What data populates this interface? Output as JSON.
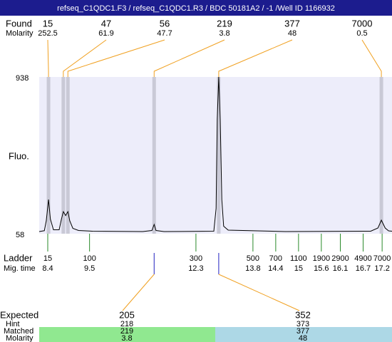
{
  "header": {
    "title": "refseq_C1QDC1.F3 / refseq_C1QDC1.R3 / BDC 50181A2 / -1 /Well ID 1166932"
  },
  "found": {
    "label": "Found",
    "molarity_label": "Molarity",
    "peaks": [
      {
        "size": 15,
        "molarity": 252.5,
        "time": 8.42
      },
      {
        "size": 47,
        "molarity": 61.9,
        "time": 8.81
      },
      {
        "size": 56,
        "molarity": 47.7,
        "time": 8.93
      },
      {
        "size": 219,
        "molarity": 3.8,
        "time": 11.2
      },
      {
        "size": 377,
        "molarity": 48,
        "time": 12.9
      },
      {
        "size": 7000,
        "molarity": 0.5,
        "time": 17.18
      }
    ]
  },
  "plot": {
    "y_label": "Fluo.",
    "ylim": [
      58,
      938
    ],
    "yticks": [
      58,
      938
    ],
    "xlim": [
      8.175,
      17.46
    ],
    "trace": {
      "x": [
        8.175,
        8.31,
        8.36,
        8.42,
        8.47,
        8.55,
        8.7,
        8.76,
        8.81,
        8.87,
        8.93,
        8.98,
        9.06,
        9.21,
        9.58,
        10.9,
        11.14,
        11.2,
        11.25,
        11.46,
        12.77,
        12.83,
        12.86,
        12.9,
        12.94,
        12.98,
        13.03,
        13.15,
        14.65,
        16.9,
        17.09,
        17.18,
        17.28,
        17.37,
        17.46
      ],
      "y": [
        70,
        75,
        130,
        250,
        140,
        80,
        80,
        140,
        182,
        160,
        182,
        130,
        88,
        76,
        72,
        70,
        76,
        110,
        76,
        70,
        72,
        200,
        700,
        938,
        700,
        250,
        100,
        78,
        70,
        72,
        90,
        134,
        90,
        74,
        72
      ]
    }
  },
  "ladder": {
    "label": "Ladder",
    "time_label": "Mig. time",
    "sizes": [
      15,
      100,
      300,
      500,
      700,
      1100,
      1900,
      2900,
      4900,
      7000
    ],
    "times": [
      8.4,
      9.5,
      12.3,
      13.8,
      14.4,
      15,
      15.6,
      16.1,
      16.7,
      17.2
    ]
  },
  "expected": {
    "label": "Expected",
    "hint_label": "Hint",
    "matched_label": "Matched",
    "molarity_label": "Molarity",
    "items": [
      {
        "expected": 205,
        "hint": 218,
        "matched": 219,
        "molarity": 3.8
      },
      {
        "expected": 352,
        "hint": 373,
        "matched": 377,
        "molarity": 48
      }
    ]
  }
}
